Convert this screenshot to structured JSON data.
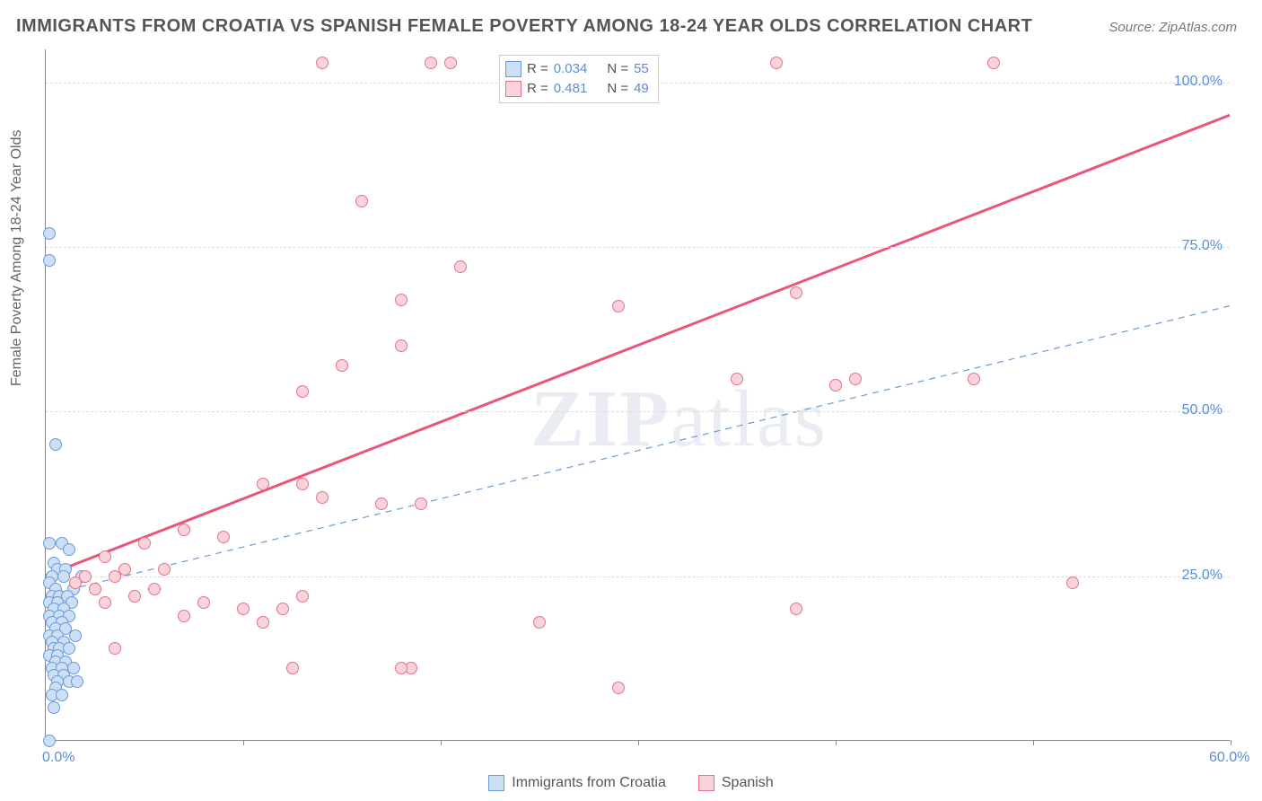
{
  "title": "IMMIGRANTS FROM CROATIA VS SPANISH FEMALE POVERTY AMONG 18-24 YEAR OLDS CORRELATION CHART",
  "source_prefix": "Source: ",
  "source_name": "ZipAtlas.com",
  "ylabel": "Female Poverty Among 18-24 Year Olds",
  "watermark_a": "ZIP",
  "watermark_b": "atlas",
  "chart": {
    "type": "scatter",
    "xlim": [
      0,
      60
    ],
    "ylim": [
      0,
      105
    ],
    "x_ticks_at": [
      0,
      10,
      20,
      30,
      40,
      50,
      60
    ],
    "x_tick_labels": {
      "0": "0.0%",
      "60": "60.0%"
    },
    "y_grid": [
      25,
      50,
      75,
      100
    ],
    "y_tick_labels": {
      "25": "25.0%",
      "50": "50.0%",
      "75": "75.0%",
      "100": "100.0%"
    },
    "marker_radius": 7,
    "marker_border": 1,
    "background_color": "#ffffff",
    "grid_color": "#dddddd",
    "axis_color": "#888888",
    "tick_label_color": "#5b8dd6",
    "label_color": "#666666",
    "title_color": "#555555",
    "title_fontsize": 20,
    "label_fontsize": 16
  },
  "series": [
    {
      "key": "croatia",
      "label": "Immigrants from Croatia",
      "fill": "#cddff5",
      "stroke": "#6a9ad8",
      "r_value": "0.034",
      "n_value": "55",
      "trend": {
        "style": "dashed",
        "color": "#6a9ad8",
        "width": 1.2,
        "x1": 0,
        "y1": 22,
        "x2": 60,
        "y2": 66
      },
      "points": [
        [
          0.2,
          77
        ],
        [
          0.2,
          73
        ],
        [
          0.5,
          45
        ],
        [
          0.2,
          30
        ],
        [
          0.8,
          30
        ],
        [
          1.2,
          29
        ],
        [
          0.4,
          27
        ],
        [
          0.6,
          26
        ],
        [
          1.0,
          26
        ],
        [
          0.3,
          25
        ],
        [
          0.9,
          25
        ],
        [
          1.8,
          25
        ],
        [
          0.2,
          24
        ],
        [
          0.5,
          23
        ],
        [
          1.4,
          23
        ],
        [
          0.3,
          22
        ],
        [
          0.7,
          22
        ],
        [
          1.1,
          22
        ],
        [
          0.2,
          21
        ],
        [
          0.6,
          21
        ],
        [
          1.3,
          21
        ],
        [
          0.4,
          20
        ],
        [
          0.9,
          20
        ],
        [
          0.2,
          19
        ],
        [
          0.7,
          19
        ],
        [
          1.2,
          19
        ],
        [
          0.3,
          18
        ],
        [
          0.8,
          18
        ],
        [
          0.5,
          17
        ],
        [
          1.0,
          17
        ],
        [
          0.2,
          16
        ],
        [
          0.6,
          16
        ],
        [
          1.5,
          16
        ],
        [
          0.3,
          15
        ],
        [
          0.9,
          15
        ],
        [
          0.4,
          14
        ],
        [
          0.7,
          14
        ],
        [
          1.2,
          14
        ],
        [
          0.2,
          13
        ],
        [
          0.6,
          13
        ],
        [
          0.5,
          12
        ],
        [
          1.0,
          12
        ],
        [
          0.3,
          11
        ],
        [
          0.8,
          11
        ],
        [
          1.4,
          11
        ],
        [
          0.4,
          10
        ],
        [
          0.9,
          10
        ],
        [
          0.6,
          9
        ],
        [
          1.2,
          9
        ],
        [
          1.6,
          9
        ],
        [
          0.5,
          8
        ],
        [
          0.3,
          7
        ],
        [
          0.8,
          7
        ],
        [
          0.4,
          5
        ],
        [
          0.2,
          0
        ]
      ]
    },
    {
      "key": "spanish",
      "label": "Spanish",
      "fill": "#f9d3da",
      "stroke": "#e96f8e",
      "r_value": "0.481",
      "n_value": "49",
      "trend": {
        "style": "solid",
        "color": "#ec5578",
        "width": 3,
        "x1": 0,
        "y1": 25,
        "x2": 60,
        "y2": 95
      },
      "points": [
        [
          14,
          103
        ],
        [
          19.5,
          103
        ],
        [
          20.5,
          103
        ],
        [
          37,
          103
        ],
        [
          48,
          103
        ],
        [
          16,
          82
        ],
        [
          21,
          72
        ],
        [
          18,
          67
        ],
        [
          29,
          66
        ],
        [
          38,
          68
        ],
        [
          18,
          60
        ],
        [
          15,
          57
        ],
        [
          47,
          55
        ],
        [
          41,
          55
        ],
        [
          40,
          54
        ],
        [
          13,
          53
        ],
        [
          35,
          55
        ],
        [
          18.5,
          11
        ],
        [
          11,
          39
        ],
        [
          13,
          39
        ],
        [
          14,
          37
        ],
        [
          17,
          36
        ],
        [
          19,
          36
        ],
        [
          9,
          31
        ],
        [
          7,
          32
        ],
        [
          5,
          30
        ],
        [
          3,
          28
        ],
        [
          4,
          26
        ],
        [
          6,
          26
        ],
        [
          2,
          25
        ],
        [
          3.5,
          25
        ],
        [
          1.5,
          24
        ],
        [
          2.5,
          23
        ],
        [
          5.5,
          23
        ],
        [
          8,
          21
        ],
        [
          10,
          20
        ],
        [
          12,
          20
        ],
        [
          13,
          22
        ],
        [
          11,
          18
        ],
        [
          3,
          21
        ],
        [
          4.5,
          22
        ],
        [
          7,
          19
        ],
        [
          52,
          24
        ],
        [
          38,
          20
        ],
        [
          25,
          18
        ],
        [
          29,
          8
        ],
        [
          18,
          11
        ],
        [
          12.5,
          11
        ],
        [
          3.5,
          14
        ]
      ]
    }
  ],
  "stats_legend_labels": {
    "r": "R =",
    "n": "N ="
  },
  "bottom_legend": {
    "items": [
      "croatia",
      "spanish"
    ]
  }
}
